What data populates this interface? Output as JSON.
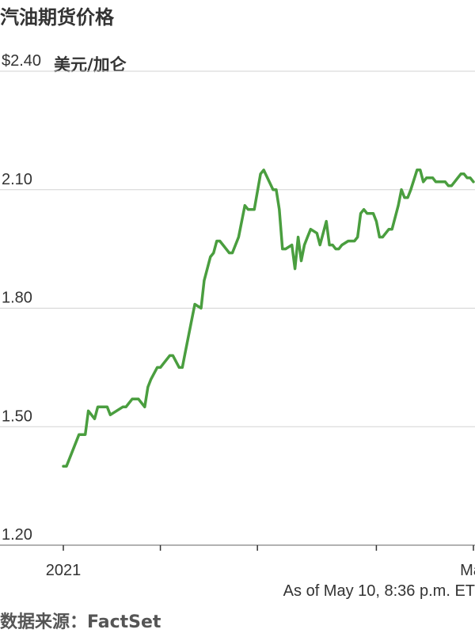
{
  "title": "汽油期货价格",
  "unit_label": "美元/加仑",
  "footer": {
    "as_of": "As of May 10, 8:36 p.m. ET",
    "source": "数据来源：FactSet"
  },
  "colors": {
    "line": "#4a9e3f",
    "grid": "#d3d3d3",
    "axis": "#999999",
    "text": "#333333"
  },
  "chart_data": {
    "type": "line",
    "title": "汽油期货价格",
    "ylabel": "美元/加仑",
    "ylim": [
      1.2,
      2.4
    ],
    "y_ticks": [
      {
        "value": 2.4,
        "label": "$2.40"
      },
      {
        "value": 2.1,
        "label": "2.10"
      },
      {
        "value": 1.8,
        "label": "1.80"
      },
      {
        "value": 1.5,
        "label": "1.50"
      },
      {
        "value": 1.2,
        "label": "1.20"
      }
    ],
    "x_domain": [
      0,
      131
    ],
    "x_ticks": [
      {
        "value": 0,
        "label": "2021"
      },
      {
        "value": 31,
        "label": ""
      },
      {
        "value": 62,
        "label": ""
      },
      {
        "value": 100,
        "label": ""
      },
      {
        "value": 131,
        "label": "May"
      }
    ],
    "grid": true,
    "series": [
      {
        "x": [
          0,
          1,
          3,
          5,
          6,
          7,
          8,
          10,
          11,
          12,
          14,
          15,
          17,
          19,
          20,
          21,
          22,
          23,
          24,
          26,
          27,
          28,
          30,
          31,
          32,
          34,
          35,
          37,
          38,
          39,
          41,
          42,
          44,
          45,
          47,
          48,
          49,
          50,
          51,
          52,
          53,
          54,
          56,
          58,
          59,
          60,
          61,
          63,
          64,
          67,
          68,
          69,
          70,
          71,
          73,
          74,
          75,
          76,
          77,
          78,
          79,
          81,
          82,
          83,
          84,
          85,
          86,
          87,
          88,
          89,
          91,
          92,
          93,
          94,
          95,
          96,
          97,
          99,
          100,
          101,
          102,
          104,
          105,
          107,
          108,
          109,
          110,
          111,
          113,
          114,
          115,
          116,
          118,
          119,
          120,
          122,
          123,
          124,
          125,
          126,
          127,
          128,
          129,
          130,
          131
        ],
        "values": [
          1.4,
          1.4,
          1.44,
          1.48,
          1.48,
          1.48,
          1.54,
          1.52,
          1.55,
          1.55,
          1.55,
          1.53,
          1.54,
          1.55,
          1.55,
          1.56,
          1.57,
          1.57,
          1.57,
          1.55,
          1.6,
          1.62,
          1.65,
          1.65,
          1.66,
          1.68,
          1.68,
          1.65,
          1.65,
          1.69,
          1.77,
          1.81,
          1.8,
          1.87,
          1.93,
          1.94,
          1.97,
          1.97,
          1.96,
          1.95,
          1.94,
          1.94,
          1.98,
          2.06,
          2.05,
          2.05,
          2.05,
          2.14,
          2.15,
          2.1,
          2.1,
          2.05,
          1.95,
          1.95,
          1.96,
          1.9,
          1.98,
          1.92,
          1.96,
          1.98,
          2.0,
          1.99,
          1.96,
          1.99,
          2.02,
          1.96,
          1.96,
          1.95,
          1.95,
          1.96,
          1.97,
          1.97,
          1.97,
          1.98,
          2.04,
          2.05,
          2.04,
          2.04,
          2.02,
          1.98,
          1.98,
          2.0,
          2.0,
          2.06,
          2.1,
          2.08,
          2.08,
          2.1,
          2.15,
          2.15,
          2.12,
          2.13,
          2.13,
          2.12,
          2.12,
          2.12,
          2.11,
          2.11,
          2.12,
          2.13,
          2.14,
          2.14,
          2.13,
          2.13,
          2.12
        ]
      }
    ]
  }
}
